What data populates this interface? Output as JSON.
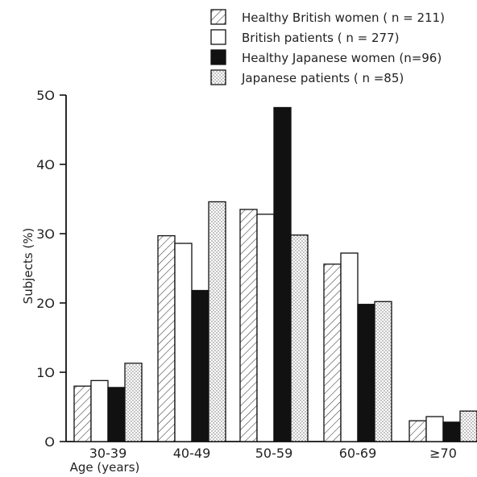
{
  "chart_data": {
    "type": "bar",
    "title": "",
    "xlabel": "Age (years)",
    "ylabel": "Subjects (%)",
    "ylim": [
      0,
      50
    ],
    "yticks": [
      0,
      10,
      20,
      30,
      40,
      50
    ],
    "ytick_labels": [
      "O",
      "1O",
      "2O",
      "3O",
      "4O",
      "5O"
    ],
    "categories": [
      "30-39",
      "40-49",
      "50-59",
      "60-69",
      "≥70"
    ],
    "legend_position": "top-right",
    "grid": false,
    "series": [
      {
        "name": "Healthy British women ( n = 211)",
        "fill": "hatch",
        "values": [
          8,
          29.7,
          33.5,
          25.6,
          3
        ]
      },
      {
        "name": "British patients ( n = 277)",
        "fill": "white",
        "values": [
          8.8,
          28.6,
          32.8,
          27.2,
          3.6
        ]
      },
      {
        "name": "Healthy Japanese women (n=96)",
        "fill": "black",
        "values": [
          7.8,
          21.8,
          48.2,
          19.8,
          2.8
        ]
      },
      {
        "name": "Japanese patients ( n =85)",
        "fill": "dots",
        "values": [
          11.3,
          34.6,
          29.8,
          20.2,
          4.4
        ]
      }
    ]
  }
}
